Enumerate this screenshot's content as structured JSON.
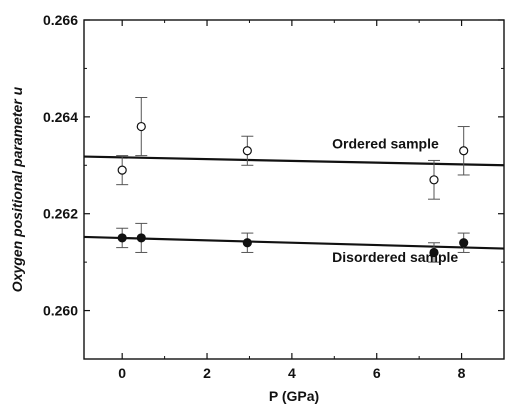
{
  "chart_data": {
    "type": "scatter",
    "title": "",
    "xlabel": "P (GPa)",
    "ylabel": "Oxygen positional parameter u",
    "xlim": [
      -0.9,
      9.0
    ],
    "ylim": [
      0.259,
      0.266
    ],
    "x_ticks": [
      0,
      2,
      4,
      6,
      8
    ],
    "x_tick_labels": [
      "0",
      "2",
      "4",
      "6",
      "8"
    ],
    "y_ticks": [
      0.26,
      0.262,
      0.264,
      0.266
    ],
    "y_tick_labels": [
      "0.260",
      "0.262",
      "0.264",
      "0.266"
    ],
    "grid": false,
    "series": [
      {
        "name": "Ordered sample",
        "marker": "open-circle",
        "color": "#111111",
        "points": [
          {
            "x": 0.0,
            "y": 0.2629,
            "err": 0.0003
          },
          {
            "x": 0.45,
            "y": 0.2638,
            "err": 0.0006
          },
          {
            "x": 2.95,
            "y": 0.2633,
            "err": 0.0003
          },
          {
            "x": 7.35,
            "y": 0.2627,
            "err": 0.0004
          },
          {
            "x": 8.05,
            "y": 0.2633,
            "err": 0.0005
          }
        ],
        "fit": {
          "x0": -0.9,
          "y0": 0.26318,
          "x1": 9.0,
          "y1": 0.263
        }
      },
      {
        "name": "Disordered sample",
        "marker": "filled-circle",
        "color": "#111111",
        "points": [
          {
            "x": 0.0,
            "y": 0.2615,
            "err": 0.0002
          },
          {
            "x": 0.45,
            "y": 0.2615,
            "err": 0.0003
          },
          {
            "x": 2.95,
            "y": 0.2614,
            "err": 0.0002
          },
          {
            "x": 7.35,
            "y": 0.2612,
            "err": 0.0002
          },
          {
            "x": 8.05,
            "y": 0.2614,
            "err": 0.0002
          }
        ],
        "fit": {
          "x0": -0.9,
          "y0": 0.26152,
          "x1": 9.0,
          "y1": 0.26128
        }
      }
    ],
    "annotations": [
      {
        "text": "Ordered sample",
        "x": 4.95,
        "y": 0.26335
      },
      {
        "text": "Disordered sample",
        "x": 4.95,
        "y": 0.261
      }
    ]
  }
}
